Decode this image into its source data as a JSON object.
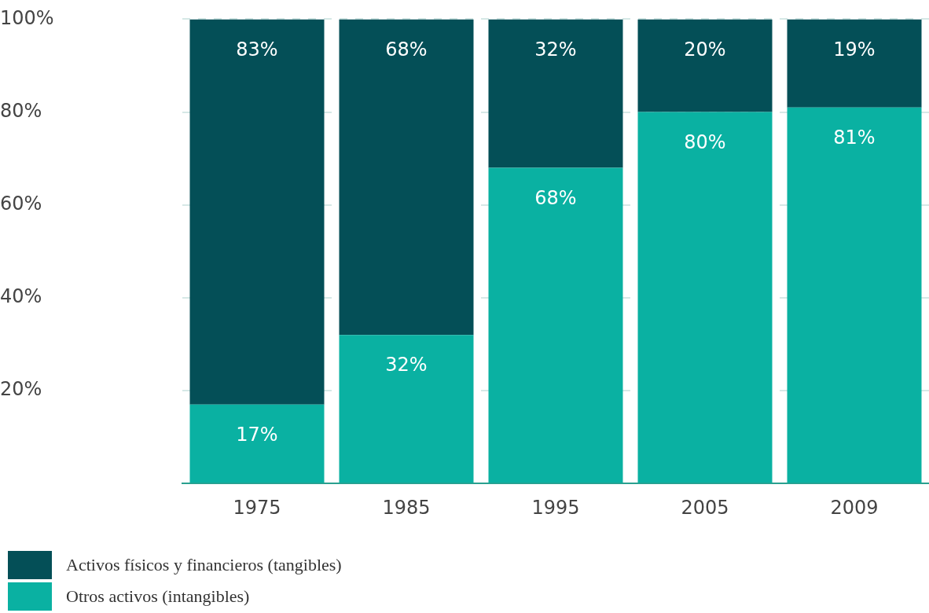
{
  "chart_data": {
    "type": "bar",
    "stacked": true,
    "categories": [
      "1975",
      "1985",
      "1995",
      "2005",
      "2009"
    ],
    "series": [
      {
        "name": "Otros activos (intangibles)",
        "color": "#0ab1a2",
        "values": [
          17,
          32,
          68,
          80,
          81
        ],
        "value_labels": [
          "17%",
          "32%",
          "68%",
          "80%",
          "81%"
        ]
      },
      {
        "name": "Activos físicos y financieros (tangibles)",
        "color": "#044f57",
        "values": [
          83,
          68,
          32,
          20,
          19
        ],
        "value_labels": [
          "83%",
          "68%",
          "32%",
          "20%",
          "19%"
        ]
      }
    ],
    "ylim": [
      0,
      100
    ],
    "yticks": [
      {
        "value": 0,
        "label": null
      },
      {
        "value": 20,
        "label": "20%"
      },
      {
        "value": 40,
        "label": "40%"
      },
      {
        "value": 60,
        "label": "60%"
      },
      {
        "value": 80,
        "label": "80%"
      },
      {
        "value": 100,
        "label": "100%"
      }
    ],
    "grid": "y",
    "legend": "bottom left"
  }
}
